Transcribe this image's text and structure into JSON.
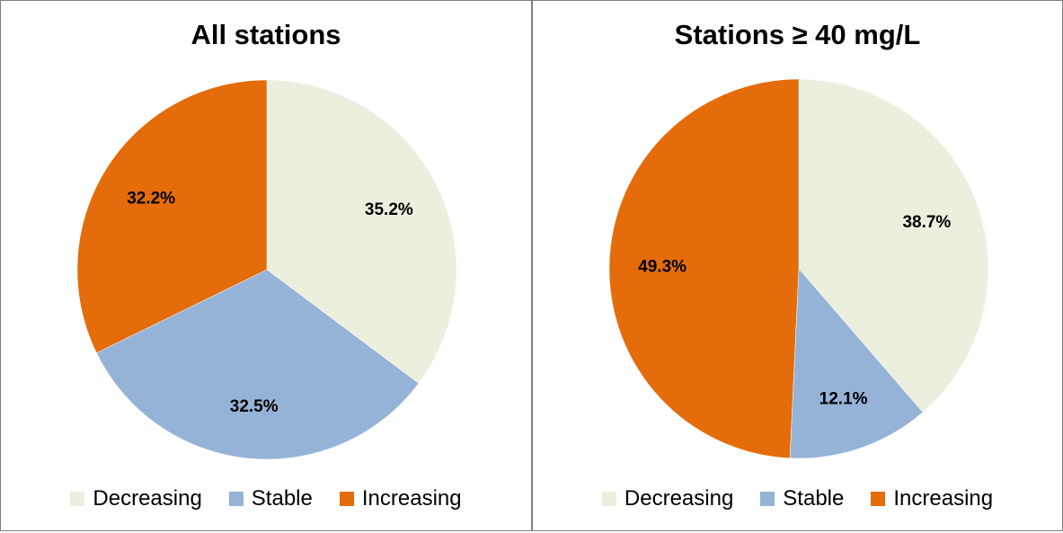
{
  "chart_data": [
    {
      "type": "pie",
      "title": "All stations",
      "categories": [
        "Decreasing",
        "Stable",
        "Increasing"
      ],
      "values": [
        35.2,
        32.5,
        32.2
      ],
      "data_labels": [
        "35.2%",
        "32.5%",
        "32.2%"
      ],
      "colors": [
        "#ebf0de",
        "#95b3d7",
        "#e46c0a"
      ],
      "legend": "bottom"
    },
    {
      "type": "pie",
      "title": "Stations ≥ 40 mg/L",
      "categories": [
        "Decreasing",
        "Stable",
        "Increasing"
      ],
      "values": [
        38.7,
        12.1,
        49.3
      ],
      "data_labels": [
        "38.7%",
        "12.1%",
        "49.3%"
      ],
      "colors": [
        "#ebf0de",
        "#95b3d7",
        "#e46c0a"
      ],
      "legend": "bottom"
    }
  ]
}
